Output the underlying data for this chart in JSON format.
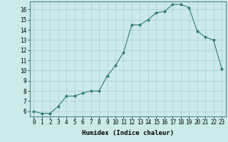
{
  "x": [
    0,
    1,
    2,
    3,
    4,
    5,
    6,
    7,
    8,
    9,
    10,
    11,
    12,
    13,
    14,
    15,
    16,
    17,
    18,
    19,
    20,
    21,
    22,
    23
  ],
  "y": [
    6.0,
    5.8,
    5.8,
    6.5,
    7.5,
    7.5,
    7.8,
    8.0,
    8.0,
    9.5,
    10.5,
    11.8,
    14.5,
    14.5,
    15.0,
    15.7,
    15.8,
    16.5,
    16.5,
    16.2,
    13.9,
    13.3,
    13.0,
    10.2
  ],
  "line_color": "#2e7d6e",
  "marker": "D",
  "marker_size": 2.0,
  "bg_color": "#cceaea",
  "grid_color": "#aacccc",
  "xlabel": "Humidex (Indice chaleur)",
  "xlim": [
    -0.5,
    23.5
  ],
  "ylim": [
    5.5,
    16.8
  ],
  "yticks": [
    6,
    7,
    8,
    9,
    10,
    11,
    12,
    13,
    14,
    15,
    16
  ],
  "xticks": [
    0,
    1,
    2,
    3,
    4,
    5,
    6,
    7,
    8,
    9,
    10,
    11,
    12,
    13,
    14,
    15,
    16,
    17,
    18,
    19,
    20,
    21,
    22,
    23
  ],
  "tick_fontsize": 5.5,
  "label_fontsize": 6.5
}
